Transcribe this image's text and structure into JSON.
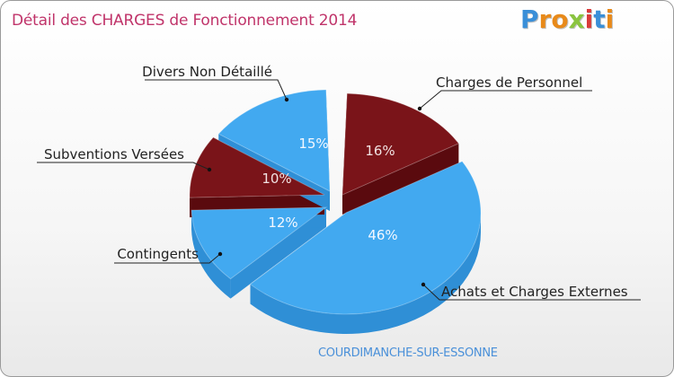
{
  "title": "Détail des CHARGES de Fonctionnement 2014",
  "logo": {
    "text": "Proxiti",
    "letter_colors": [
      "#3a8fd8",
      "#e88a1a",
      "#e88a1a",
      "#8ac43f",
      "#d93a3a",
      "#3a8fd8",
      "#e88a1a"
    ]
  },
  "commune": "COURDIMANCHE-SUR-ESSONNE",
  "colors": {
    "blue": "#42a9f0",
    "blue_side": "#2f8fd6",
    "dark_red": "#7a1419",
    "dark_red_side": "#5a0a0e"
  },
  "chart_data": {
    "type": "pie",
    "title": "Détail des CHARGES de Fonctionnement 2014",
    "slices": [
      {
        "label": "Charges de Personnel",
        "percent": 16,
        "value_label": "16%",
        "color": "dark_red"
      },
      {
        "label": "Achats et Charges Externes",
        "percent": 46,
        "value_label": "46%",
        "color": "blue"
      },
      {
        "label": "Contingents",
        "percent": 12,
        "value_label": "12%",
        "color": "blue"
      },
      {
        "label": "Subventions Versées",
        "percent": 10,
        "value_label": "10%",
        "color": "dark_red"
      },
      {
        "label": "Divers Non Détaillé",
        "percent": 15,
        "value_label": "15%",
        "color": "blue"
      }
    ]
  }
}
